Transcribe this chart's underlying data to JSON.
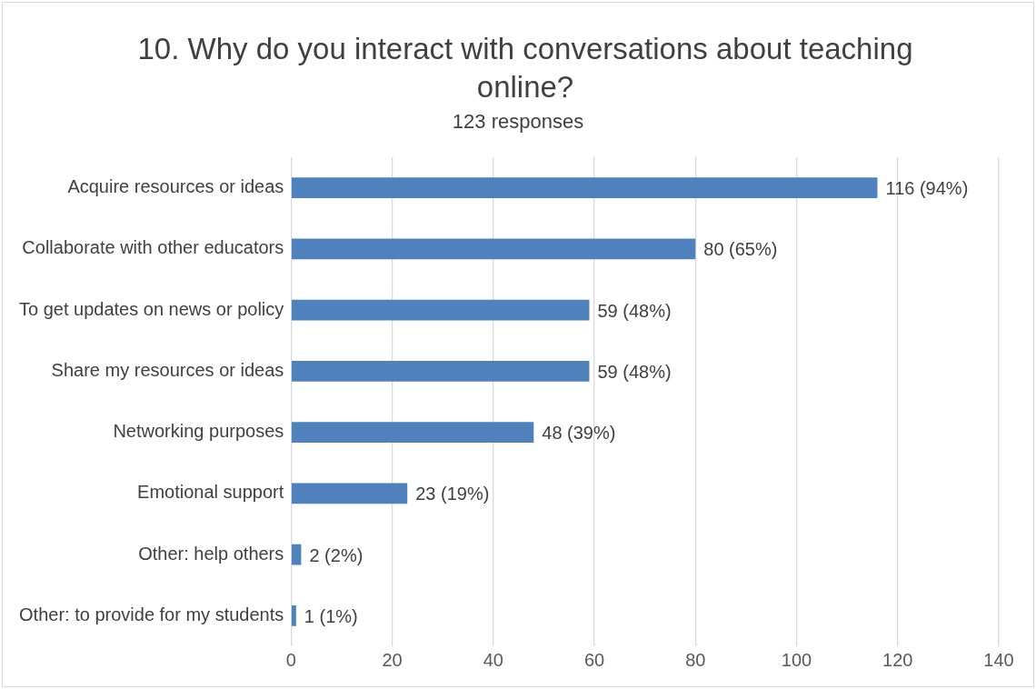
{
  "chart_data": {
    "type": "bar",
    "orientation": "horizontal",
    "title": "10. Why do you interact with conversations about teaching online?",
    "subtitle": "123 responses",
    "categories": [
      "Acquire resources or ideas",
      "Collaborate with other educators",
      "To get updates on news or policy",
      "Share my resources or ideas",
      "Networking purposes",
      "Emotional support",
      "Other: help others",
      "Other: to provide for my students"
    ],
    "values": [
      116,
      80,
      59,
      59,
      48,
      23,
      2,
      1
    ],
    "value_labels": [
      "116 (94%)",
      "80 (65%)",
      "59 (48%)",
      "59 (48%)",
      "48 (39%)",
      "23 (19%)",
      "2 (2%)",
      "1 (1%)"
    ],
    "color": "#4f81bd",
    "xlim": [
      0,
      140
    ],
    "xticks": [
      0,
      20,
      40,
      60,
      80,
      100,
      120,
      140
    ],
    "grid": "x",
    "legend": false
  }
}
